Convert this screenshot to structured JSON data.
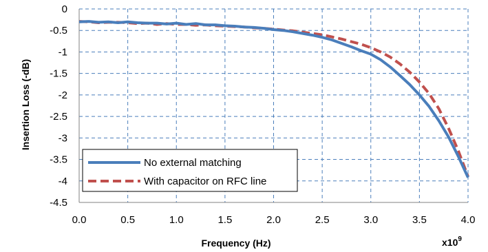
{
  "chart_data": {
    "type": "line",
    "xlabel": "Frequency (Hz)",
    "ylabel": "Insertion Loss (-dB)",
    "x_multiplier_base": "x10",
    "x_multiplier_exp": "9",
    "xlim": [
      0.0,
      4.0
    ],
    "ylim": [
      -4.5,
      0
    ],
    "x_ticks": [
      0.0,
      0.5,
      1.0,
      1.5,
      2.0,
      2.5,
      3.0,
      3.5,
      4.0
    ],
    "x_tick_labels": [
      "0.0",
      "0.5",
      "1.0",
      "1.5",
      "2.0",
      "2.5",
      "3.0",
      "3.5",
      "4.0"
    ],
    "y_ticks": [
      0,
      -0.5,
      -1,
      -1.5,
      -2,
      -2.5,
      -3,
      -3.5,
      -4,
      -4.5
    ],
    "y_tick_labels": [
      "0",
      "-0.5",
      "-1",
      "-1.5",
      "-2",
      "-2.5",
      "-3",
      "-3.5",
      "-4",
      "-4.5"
    ],
    "grid": true,
    "legend_position": "bottom-left",
    "series": [
      {
        "name": "No external matching",
        "color": "#4a7ebb",
        "style": "solid",
        "x": [
          0.0,
          0.1,
          0.2,
          0.3,
          0.4,
          0.5,
          0.6,
          0.7,
          0.8,
          0.9,
          1.0,
          1.1,
          1.2,
          1.3,
          1.4,
          1.5,
          1.6,
          1.7,
          1.8,
          1.9,
          2.0,
          2.1,
          2.2,
          2.3,
          2.4,
          2.5,
          2.6,
          2.7,
          2.8,
          2.9,
          3.0,
          3.1,
          3.2,
          3.3,
          3.4,
          3.5,
          3.6,
          3.7,
          3.8,
          3.9,
          4.0
        ],
        "values": [
          -0.3,
          -0.29,
          -0.31,
          -0.3,
          -0.32,
          -0.3,
          -0.32,
          -0.33,
          -0.33,
          -0.35,
          -0.33,
          -0.36,
          -0.34,
          -0.37,
          -0.37,
          -0.39,
          -0.4,
          -0.42,
          -0.43,
          -0.45,
          -0.48,
          -0.5,
          -0.53,
          -0.57,
          -0.61,
          -0.66,
          -0.72,
          -0.8,
          -0.88,
          -0.97,
          -1.05,
          -1.18,
          -1.35,
          -1.55,
          -1.76,
          -2.0,
          -2.27,
          -2.6,
          -2.98,
          -3.43,
          -3.92
        ]
      },
      {
        "name": "With capacitor on RFC line",
        "color": "#c0504d",
        "style": "dashed",
        "x": [
          0.0,
          0.1,
          0.2,
          0.3,
          0.4,
          0.5,
          0.6,
          0.7,
          0.8,
          0.9,
          1.0,
          1.1,
          1.2,
          1.3,
          1.4,
          1.5,
          1.6,
          1.7,
          1.8,
          1.9,
          2.0,
          2.1,
          2.2,
          2.3,
          2.4,
          2.5,
          2.6,
          2.7,
          2.8,
          2.9,
          3.0,
          3.1,
          3.2,
          3.3,
          3.4,
          3.5,
          3.6,
          3.7,
          3.8,
          3.9,
          4.0
        ],
        "values": [
          -0.29,
          -0.3,
          -0.32,
          -0.31,
          -0.31,
          -0.32,
          -0.34,
          -0.33,
          -0.36,
          -0.34,
          -0.36,
          -0.36,
          -0.38,
          -0.37,
          -0.39,
          -0.4,
          -0.41,
          -0.42,
          -0.44,
          -0.45,
          -0.47,
          -0.49,
          -0.51,
          -0.54,
          -0.57,
          -0.6,
          -0.65,
          -0.7,
          -0.76,
          -0.82,
          -0.9,
          -1.0,
          -1.12,
          -1.28,
          -1.47,
          -1.7,
          -1.97,
          -2.32,
          -2.78,
          -3.3,
          -3.9
        ]
      }
    ]
  }
}
